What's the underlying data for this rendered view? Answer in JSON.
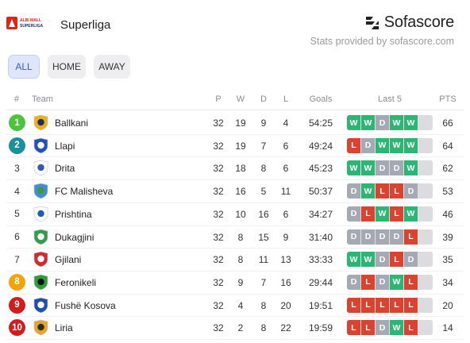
{
  "header": {
    "league_logo_text": "ALBI MALL SUPERLIGA",
    "league_name": "Superliga",
    "brand_name": "Sofascore",
    "stats_note": "Stats provided by sofascore.com"
  },
  "filters": [
    {
      "label": "ALL",
      "active": true
    },
    {
      "label": "HOME",
      "active": false
    },
    {
      "label": "AWAY",
      "active": false
    }
  ],
  "columns": {
    "rank": "#",
    "team": "Team",
    "played": "P",
    "won": "W",
    "drawn": "D",
    "lost": "L",
    "goals": "Goals",
    "form": "Last 5",
    "points": "PTS"
  },
  "colors": {
    "win": "#2bb673",
    "draw": "#a4a9b3",
    "loss": "#d9432f",
    "accent": "#3a5ccc",
    "rank_1": "#4cc43c",
    "rank_2": "#1c8f9a",
    "rank_8": "#f5a30a",
    "rank_relegation": "#d31c1c"
  },
  "standings": [
    {
      "rank": "1",
      "team": "Ballkani",
      "played": "32",
      "won": "19",
      "drawn": "9",
      "lost": "4",
      "goals": "54:25",
      "form": [
        "W",
        "W",
        "D",
        "W",
        "W"
      ],
      "points": "66",
      "rank_color": "#4cc43c",
      "crest_colors": [
        "#e8b21a",
        "#1b2d6b"
      ],
      "crest_icon": "ballkani-crest-icon"
    },
    {
      "rank": "2",
      "team": "Llapi",
      "played": "32",
      "won": "19",
      "drawn": "7",
      "lost": "6",
      "goals": "49:24",
      "form": [
        "L",
        "D",
        "W",
        "W",
        "W"
      ],
      "points": "64",
      "rank_color": "#1c8f9a",
      "crest_colors": [
        "#2353b8",
        "#ffffff"
      ],
      "crest_icon": "llapi-crest-icon"
    },
    {
      "rank": "3",
      "team": "Drita",
      "played": "32",
      "won": "18",
      "drawn": "8",
      "lost": "6",
      "goals": "45:23",
      "form": [
        "W",
        "W",
        "D",
        "D",
        "W"
      ],
      "points": "62",
      "rank_color": "",
      "crest_colors": [
        "#ffffff",
        "#3457b5"
      ],
      "crest_icon": "drita-crest-icon"
    },
    {
      "rank": "4",
      "team": "FC Malisheva",
      "played": "32",
      "won": "16",
      "drawn": "5",
      "lost": "11",
      "goals": "50:37",
      "form": [
        "D",
        "W",
        "L",
        "L",
        "D"
      ],
      "points": "53",
      "rank_color": "",
      "crest_colors": [
        "#3f8fd0",
        "#3c9a3c"
      ],
      "crest_icon": "malisheva-crest-icon"
    },
    {
      "rank": "5",
      "team": "Prishtina",
      "played": "32",
      "won": "10",
      "drawn": "16",
      "lost": "6",
      "goals": "34:27",
      "form": [
        "D",
        "L",
        "W",
        "L",
        "W"
      ],
      "points": "46",
      "rank_color": "",
      "crest_colors": [
        "#ffffff",
        "#1f5fb0"
      ],
      "crest_icon": "prishtina-crest-icon"
    },
    {
      "rank": "6",
      "team": "Dukagjini",
      "played": "32",
      "won": "8",
      "drawn": "15",
      "lost": "9",
      "goals": "31:40",
      "form": [
        "D",
        "D",
        "D",
        "D",
        "L"
      ],
      "points": "39",
      "rank_color": "",
      "crest_colors": [
        "#2e9e4a",
        "#ffffff"
      ],
      "crest_icon": "dukagjini-crest-icon"
    },
    {
      "rank": "7",
      "team": "Gjilani",
      "played": "32",
      "won": "8",
      "drawn": "11",
      "lost": "13",
      "goals": "33:33",
      "form": [
        "W",
        "W",
        "D",
        "L",
        "D"
      ],
      "points": "35",
      "rank_color": "",
      "crest_colors": [
        "#d22a2a",
        "#ffffff"
      ],
      "crest_icon": "gjilani-crest-icon"
    },
    {
      "rank": "8",
      "team": "Feronikeli",
      "played": "32",
      "won": "9",
      "drawn": "7",
      "lost": "16",
      "goals": "29:44",
      "form": [
        "D",
        "L",
        "D",
        "W",
        "L"
      ],
      "points": "34",
      "rank_color": "#f5a30a",
      "crest_colors": [
        "#2f9e3a",
        "#111111"
      ],
      "crest_icon": "feronikeli-crest-icon"
    },
    {
      "rank": "9",
      "team": "Fushë Kosova",
      "played": "32",
      "won": "4",
      "drawn": "8",
      "lost": "20",
      "goals": "19:51",
      "form": [
        "L",
        "L",
        "L",
        "L",
        "L"
      ],
      "points": "20",
      "rank_color": "#d31c1c",
      "crest_colors": [
        "#1d4fb0",
        "#ffffff"
      ],
      "crest_icon": "fushe-kosova-crest-icon"
    },
    {
      "rank": "10",
      "team": "Liria",
      "played": "32",
      "won": "2",
      "drawn": "8",
      "lost": "22",
      "goals": "19:59",
      "form": [
        "L",
        "L",
        "D",
        "W",
        "L"
      ],
      "points": "14",
      "rank_color": "#d31c1c",
      "crest_colors": [
        "#e8a521",
        "#2b2b2b"
      ],
      "crest_icon": "liria-crest-icon"
    }
  ]
}
